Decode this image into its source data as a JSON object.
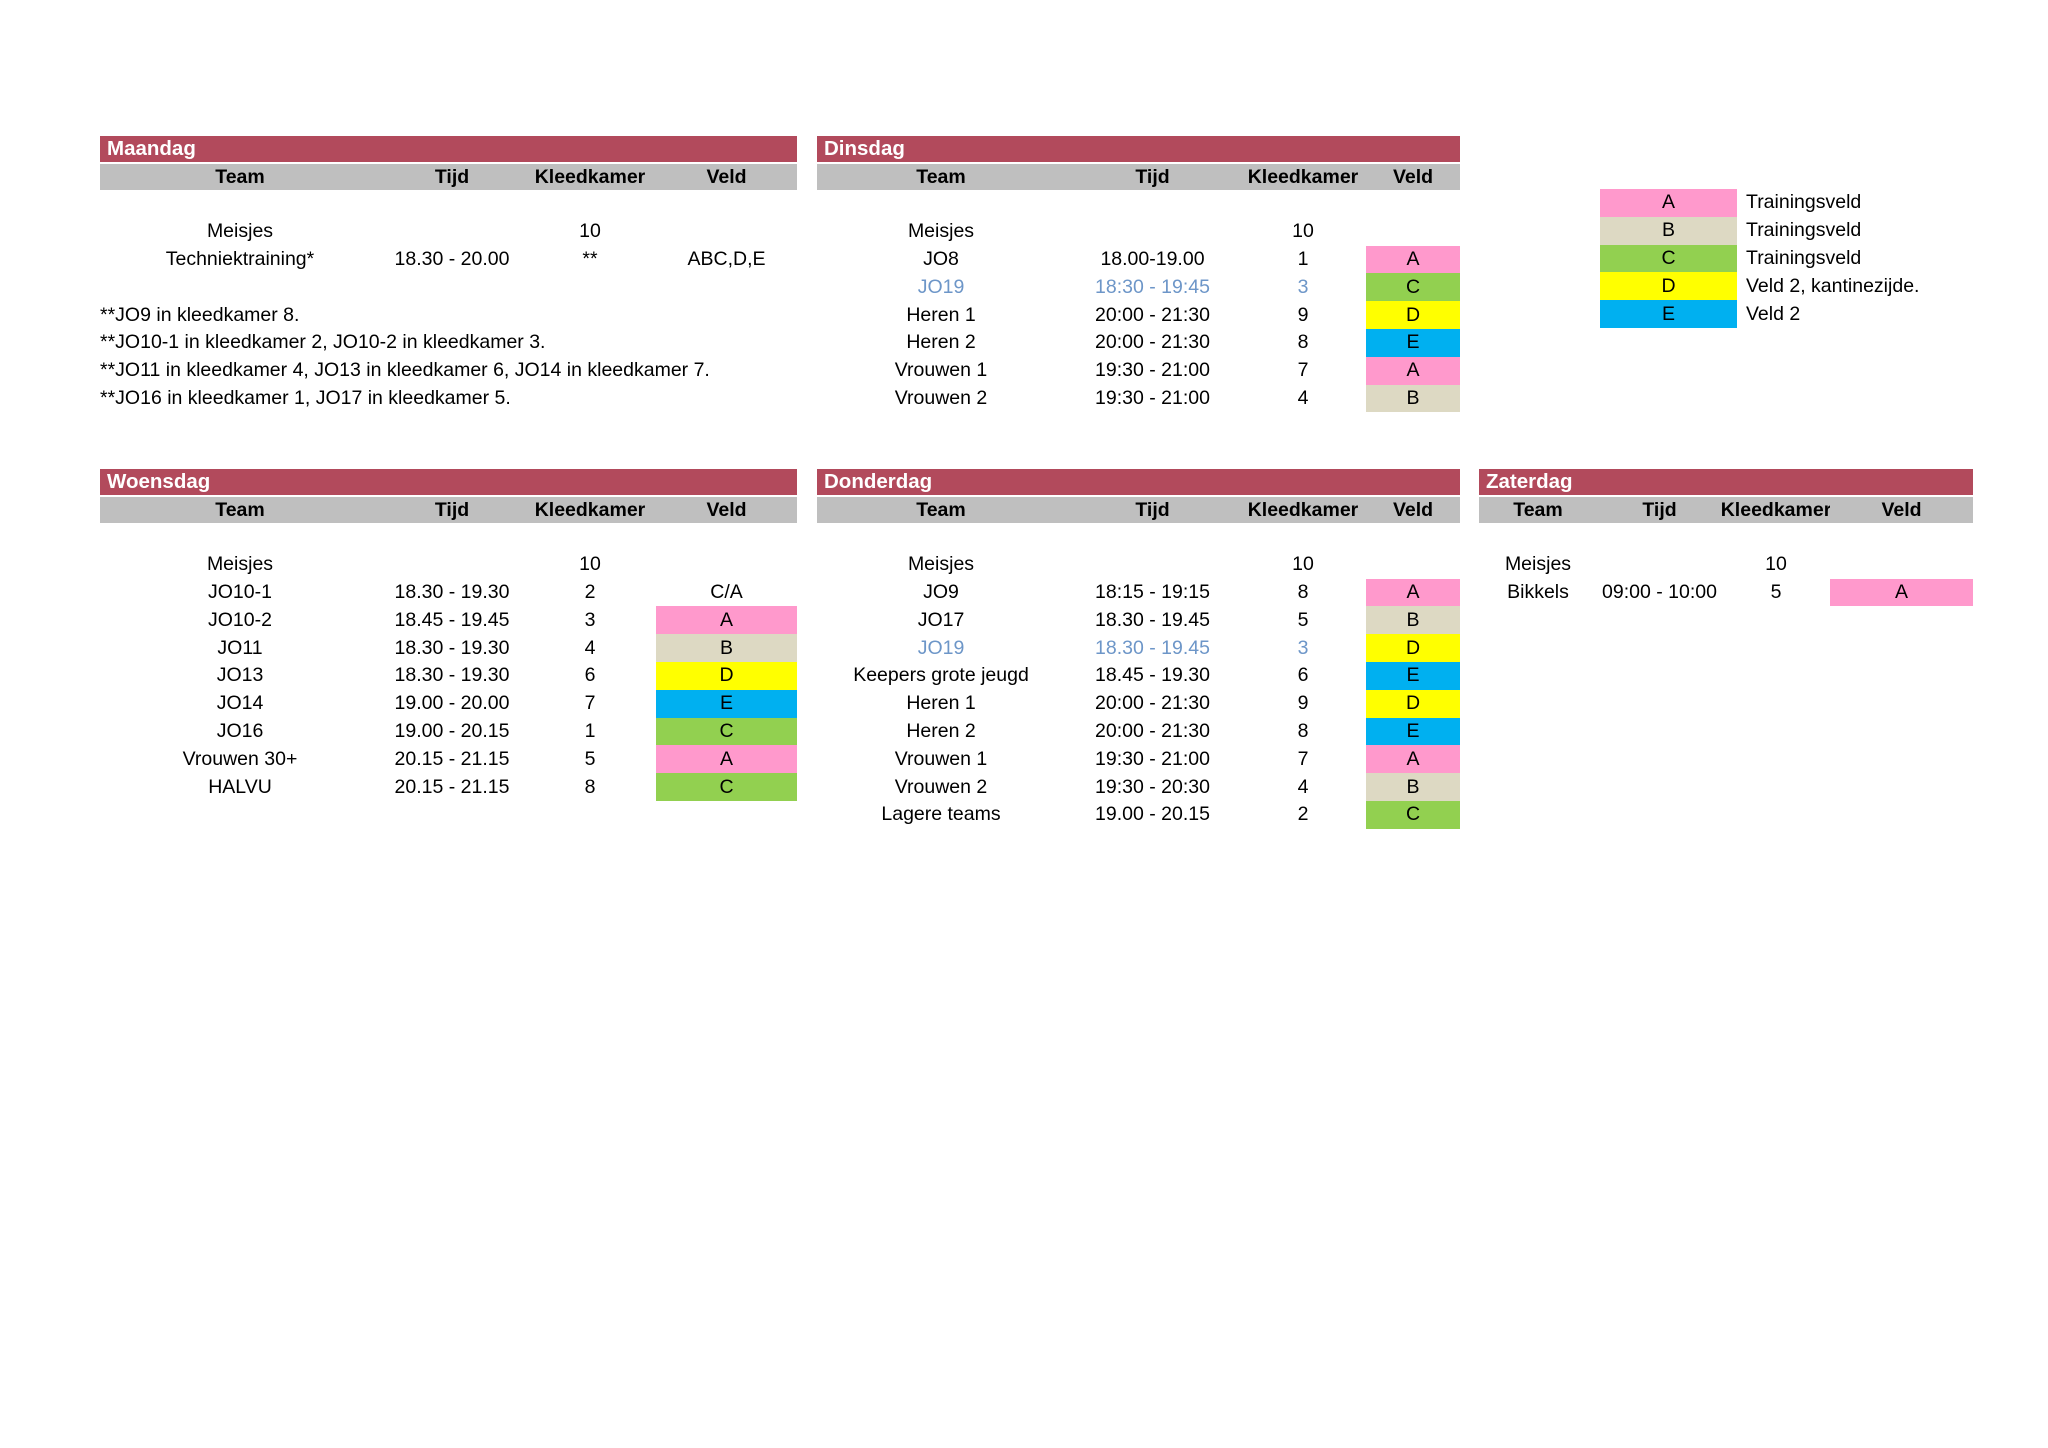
{
  "colors": {
    "day_bar": "#B24A5C",
    "day_bar_text": "#FFFFFF",
    "column_header_bg": "#BFBFBF",
    "text": "#000000",
    "link_blue": "#6D96C8",
    "veld": {
      "A": "#FF99CC",
      "B": "#DDD9C3",
      "C": "#92D050",
      "D": "#FFFF00",
      "E": "#00B0F0"
    }
  },
  "columns": [
    "Team",
    "Tijd",
    "Kleedkamer",
    "Veld"
  ],
  "tables": {
    "maandag": {
      "title": "Maandag",
      "rows": [
        {
          "team": "Meisjes",
          "tijd": "",
          "kleedkamer": "10",
          "veld": "",
          "veld_fill": null,
          "blue": false
        },
        {
          "team": "Techniektraining*",
          "tijd": "18.30 - 20.00",
          "kleedkamer": "**",
          "veld": "ABC,D,E",
          "veld_fill": null,
          "blue": false
        }
      ]
    },
    "dinsdag": {
      "title": "Dinsdag",
      "rows": [
        {
          "team": "Meisjes",
          "tijd": "",
          "kleedkamer": "10",
          "veld": "",
          "veld_fill": null,
          "blue": false
        },
        {
          "team": "JO8",
          "tijd": "18.00-19.00",
          "kleedkamer": "1",
          "veld": "A",
          "veld_fill": "A",
          "blue": false
        },
        {
          "team": "JO19",
          "tijd": "18:30 - 19:45",
          "kleedkamer": "3",
          "veld": "C",
          "veld_fill": "C",
          "blue": true
        },
        {
          "team": "Heren 1",
          "tijd": "20:00 - 21:30",
          "kleedkamer": "9",
          "veld": "D",
          "veld_fill": "D",
          "blue": false
        },
        {
          "team": "Heren 2",
          "tijd": "20:00 - 21:30",
          "kleedkamer": "8",
          "veld": "E",
          "veld_fill": "E",
          "blue": false
        },
        {
          "team": "Vrouwen 1",
          "tijd": "19:30 - 21:00",
          "kleedkamer": "7",
          "veld": "A",
          "veld_fill": "A",
          "blue": false
        },
        {
          "team": "Vrouwen 2",
          "tijd": "19:30 - 21:00",
          "kleedkamer": "4",
          "veld": "B",
          "veld_fill": "B",
          "blue": false
        }
      ]
    },
    "woensdag": {
      "title": "Woensdag",
      "rows": [
        {
          "team": "Meisjes",
          "tijd": "",
          "kleedkamer": "10",
          "veld": "",
          "veld_fill": null,
          "blue": false
        },
        {
          "team": "JO10-1",
          "tijd": "18.30 - 19.30",
          "kleedkamer": "2",
          "veld": "C/A",
          "veld_fill": null,
          "blue": false
        },
        {
          "team": "JO10-2",
          "tijd": "18.45 - 19.45",
          "kleedkamer": "3",
          "veld": "A",
          "veld_fill": "A",
          "blue": false
        },
        {
          "team": "JO11",
          "tijd": "18.30 - 19.30",
          "kleedkamer": "4",
          "veld": "B",
          "veld_fill": "B",
          "blue": false
        },
        {
          "team": "JO13",
          "tijd": "18.30 - 19.30",
          "kleedkamer": "6",
          "veld": "D",
          "veld_fill": "D",
          "blue": false
        },
        {
          "team": "JO14",
          "tijd": "19.00 - 20.00",
          "kleedkamer": "7",
          "veld": "E",
          "veld_fill": "E",
          "blue": false
        },
        {
          "team": "JO16",
          "tijd": "19.00 - 20.15",
          "kleedkamer": "1",
          "veld": "C",
          "veld_fill": "C",
          "blue": false
        },
        {
          "team": "Vrouwen 30+",
          "tijd": "20.15 - 21.15",
          "kleedkamer": "5",
          "veld": "A",
          "veld_fill": "A",
          "blue": false
        },
        {
          "team": "HALVU",
          "tijd": "20.15 - 21.15",
          "kleedkamer": "8",
          "veld": "C",
          "veld_fill": "C",
          "blue": false
        }
      ]
    },
    "donderdag": {
      "title": "Donderdag",
      "rows": [
        {
          "team": "Meisjes",
          "tijd": "",
          "kleedkamer": "10",
          "veld": "",
          "veld_fill": null,
          "blue": false
        },
        {
          "team": "JO9",
          "tijd": "18:15 - 19:15",
          "kleedkamer": "8",
          "veld": "A",
          "veld_fill": "A",
          "blue": false
        },
        {
          "team": "JO17",
          "tijd": "18.30 - 19.45",
          "kleedkamer": "5",
          "veld": "B",
          "veld_fill": "B",
          "blue": false
        },
        {
          "team": "JO19",
          "tijd": "18.30 - 19.45",
          "kleedkamer": "3",
          "veld": "D",
          "veld_fill": "D",
          "blue": true
        },
        {
          "team": "Keepers grote jeugd",
          "tijd": "18.45 - 19.30",
          "kleedkamer": "6",
          "veld": "E",
          "veld_fill": "E",
          "blue": false
        },
        {
          "team": "Heren 1",
          "tijd": "20:00 - 21:30",
          "kleedkamer": "9",
          "veld": "D",
          "veld_fill": "D",
          "blue": false
        },
        {
          "team": "Heren 2",
          "tijd": "20:00 - 21:30",
          "kleedkamer": "8",
          "veld": "E",
          "veld_fill": "E",
          "blue": false
        },
        {
          "team": "Vrouwen 1",
          "tijd": "19:30 - 21:00",
          "kleedkamer": "7",
          "veld": "A",
          "veld_fill": "A",
          "blue": false
        },
        {
          "team": "Vrouwen 2",
          "tijd": "19:30 - 20:30",
          "kleedkamer": "4",
          "veld": "B",
          "veld_fill": "B",
          "blue": false
        },
        {
          "team": "Lagere teams",
          "tijd": "19.00 - 20.15",
          "kleedkamer": "2",
          "veld": "C",
          "veld_fill": "C",
          "blue": false
        }
      ]
    },
    "zaterdag": {
      "title": "Zaterdag",
      "rows": [
        {
          "team": "Meisjes",
          "tijd": "",
          "kleedkamer": "10",
          "veld": "",
          "veld_fill": null,
          "blue": false
        },
        {
          "team": "Bikkels",
          "tijd": "09:00 - 10:00",
          "kleedkamer": "5",
          "veld": "A",
          "veld_fill": "A",
          "blue": false
        }
      ]
    }
  },
  "footnotes": [
    "**JO9 in kleedkamer 8.",
    "**JO10-1 in kleedkamer 2, JO10-2 in kleedkamer 3.",
    "**JO11 in kleedkamer 4, JO13 in kleedkamer 6, JO14 in kleedkamer 7.",
    "**JO16 in kleedkamer 1, JO17 in kleedkamer 5."
  ],
  "legend": [
    {
      "code": "A",
      "label": "Trainingsveld"
    },
    {
      "code": "B",
      "label": "Trainingsveld"
    },
    {
      "code": "C",
      "label": "Trainingsveld"
    },
    {
      "code": "D",
      "label": "Veld 2, kantinezijde."
    },
    {
      "code": "E",
      "label": "Veld 2"
    }
  ]
}
